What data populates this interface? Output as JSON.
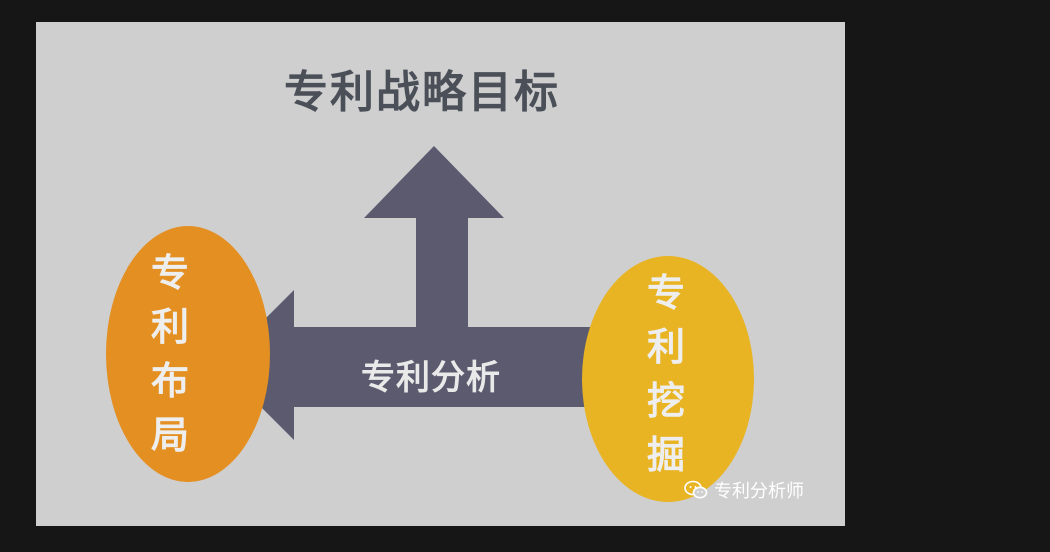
{
  "diagram": {
    "title": "专利战略目标",
    "center": "专利分析",
    "left_oval": "专利布局",
    "right_oval": "专利挖掘"
  },
  "watermark": {
    "text": "专利分析师",
    "icon": "wechat-icon"
  },
  "colors": {
    "background": "#cfcfd0",
    "arrow": "#5b5a6e",
    "left_oval": "#e48f22",
    "right_oval": "#e8b424",
    "title": "#4b5058"
  }
}
